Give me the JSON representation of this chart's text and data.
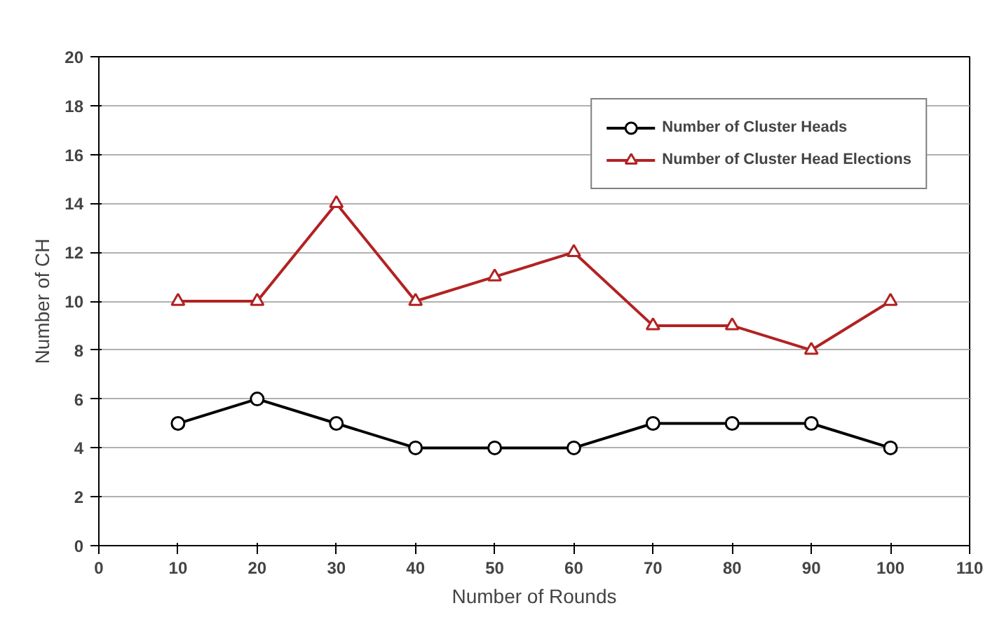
{
  "chart_data": {
    "type": "line",
    "xlabel": "Number of Rounds",
    "ylabel": "Number of CH",
    "x": [
      10,
      20,
      30,
      40,
      50,
      60,
      70,
      80,
      90,
      100
    ],
    "series": [
      {
        "name": "Number of Cluster Heads",
        "color": "#000000",
        "marker": "circle",
        "values": [
          5,
          6,
          5,
          4,
          4,
          4,
          5,
          5,
          5,
          4
        ]
      },
      {
        "name": "Number of Cluster Head Elections",
        "color": "#b22222",
        "marker": "triangle",
        "values": [
          10,
          10,
          14,
          10,
          11,
          12,
          9,
          9,
          8,
          10
        ]
      }
    ],
    "xlim": [
      0,
      110
    ],
    "xticks": [
      0,
      10,
      20,
      30,
      40,
      50,
      60,
      70,
      80,
      90,
      100,
      110
    ],
    "ylim": [
      0,
      20
    ],
    "yticks": [
      0,
      2,
      4,
      6,
      8,
      10,
      12,
      14,
      16,
      18,
      20
    ],
    "grid": "y",
    "legend": "top right",
    "line_style": "solid"
  }
}
